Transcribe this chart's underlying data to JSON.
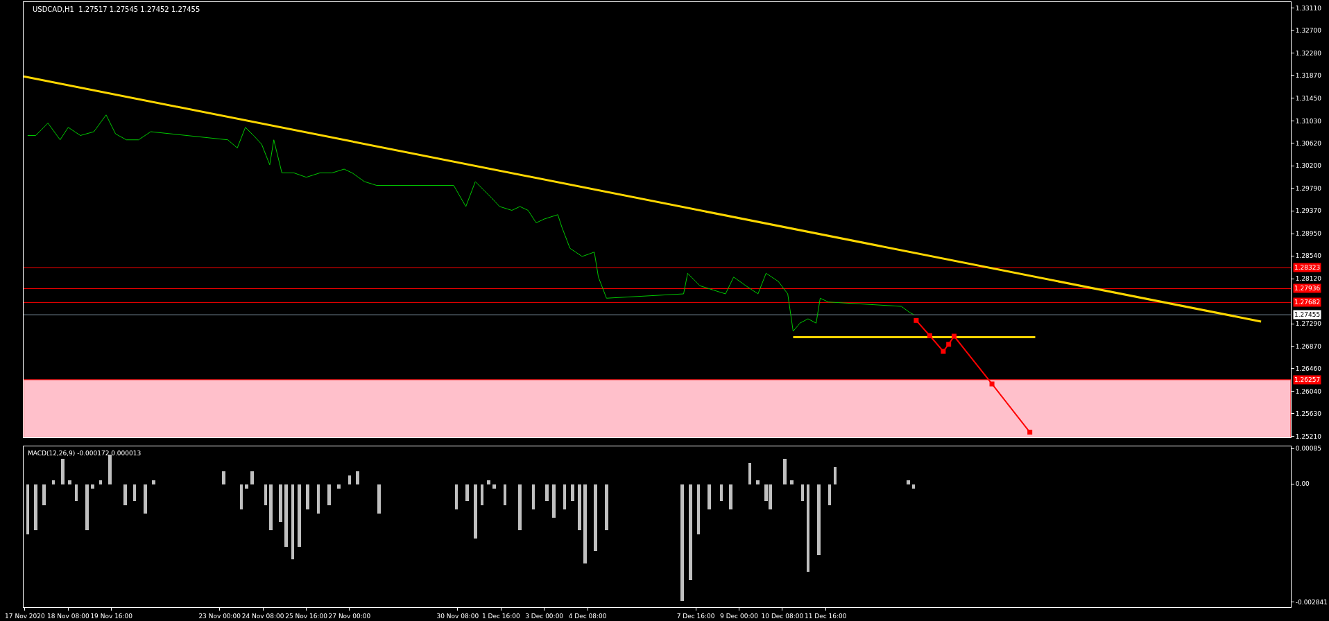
{
  "chart_data": [
    {
      "type": "line",
      "title": "USDCAD,H1  1.27517 1.27545 1.27452 1.27455",
      "xlim": [
        "2020-11-16T23:00",
        "2020-12-26T00:00"
      ],
      "ylim": [
        1.2519,
        1.3322
      ],
      "tick_labels": "y",
      "grid": false,
      "yticks": [
        {
          "value": 1.3311,
          "label": "1.33110"
        },
        {
          "value": 1.327,
          "label": "1.32700"
        },
        {
          "value": 1.3228,
          "label": "1.32280"
        },
        {
          "value": 1.3187,
          "label": "1.31870"
        },
        {
          "value": 1.3145,
          "label": "1.31450"
        },
        {
          "value": 1.3103,
          "label": "1.31030"
        },
        {
          "value": 1.3062,
          "label": "1.30620"
        },
        {
          "value": 1.302,
          "label": "1.30200"
        },
        {
          "value": 1.2979,
          "label": "1.29790"
        },
        {
          "value": 1.2937,
          "label": "1.29370"
        },
        {
          "value": 1.2895,
          "label": "1.28950"
        },
        {
          "value": 1.2854,
          "label": "1.28540"
        },
        {
          "value": 1.2812,
          "label": "1.28120"
        },
        {
          "value": 1.2729,
          "label": "1.27290"
        },
        {
          "value": 1.2687,
          "label": "1.26870"
        },
        {
          "value": 1.2646,
          "label": "1.26460"
        },
        {
          "value": 1.2604,
          "label": "1.26040"
        },
        {
          "value": 1.2563,
          "label": "1.25630"
        },
        {
          "value": 1.2521,
          "label": "1.25210"
        }
      ],
      "series": [
        {
          "color": "#00c800",
          "marker": "none",
          "line_style": "solid",
          "x": [
            "2020-11-17T02:00",
            "2020-11-17T08:00",
            "2020-11-17T17:00",
            "2020-11-18T02:00",
            "2020-11-18T08:00",
            "2020-11-18T17:00",
            "2020-11-19T03:00",
            "2020-11-19T12:00",
            "2020-11-19T19:00",
            "2020-11-20T03:00",
            "2020-11-20T12:00",
            "2020-11-20T21:00",
            "2020-11-23T06:00",
            "2020-11-23T13:00",
            "2020-11-23T19:00",
            "2020-11-24T01:00",
            "2020-11-24T07:00",
            "2020-11-24T13:00",
            "2020-11-24T16:00",
            "2020-11-24T22:00",
            "2020-11-25T07:00",
            "2020-11-25T16:00",
            "2020-11-26T02:00",
            "2020-11-26T11:00",
            "2020-11-26T20:00",
            "2020-11-27T02:00",
            "2020-11-27T11:00",
            "2020-11-27T20:00",
            "2020-11-30T05:00",
            "2020-11-30T14:00",
            "2020-11-30T21:00",
            "2020-12-01T03:00",
            "2020-12-01T09:00",
            "2020-12-01T15:00",
            "2020-12-02T00:00",
            "2020-12-02T06:00",
            "2020-12-02T12:00",
            "2020-12-02T18:00",
            "2020-12-03T00:00",
            "2020-12-03T10:00",
            "2020-12-03T13:00",
            "2020-12-03T19:00",
            "2020-12-04T04:00",
            "2020-12-04T13:00",
            "2020-12-04T16:00",
            "2020-12-04T22:00",
            "2020-12-07T07:00",
            "2020-12-07T10:00",
            "2020-12-07T19:00",
            "2020-12-08T05:00",
            "2020-12-08T14:00",
            "2020-12-08T20:00",
            "2020-12-09T05:00",
            "2020-12-09T14:00",
            "2020-12-09T20:00",
            "2020-12-10T05:00",
            "2020-12-10T12:00",
            "2020-12-10T16:00",
            "2020-12-10T21:00",
            "2020-12-11T03:00",
            "2020-12-11T09:00",
            "2020-12-11T12:00",
            "2020-12-11T18:00",
            "2020-12-14T00:00",
            "2020-12-14T06:00",
            "2020-12-14T09:00"
          ],
          "values": [
            1.3076,
            1.3076,
            1.3099,
            1.3068,
            1.3091,
            1.3076,
            1.3083,
            1.3114,
            1.3079,
            1.3068,
            1.3068,
            1.3083,
            1.3068,
            1.3053,
            1.3091,
            1.3076,
            1.306,
            1.3022,
            1.3068,
            1.3007,
            1.3007,
            1.2999,
            1.3007,
            1.3007,
            1.3014,
            1.3007,
            1.2991,
            1.2984,
            1.2984,
            1.2945,
            1.2991,
            1.2976,
            1.2961,
            1.2945,
            1.2938,
            1.2945,
            1.2938,
            1.2915,
            1.2922,
            1.293,
            1.2907,
            1.2868,
            1.2853,
            1.2861,
            1.2815,
            1.2776,
            1.2784,
            1.2822,
            1.2799,
            1.2791,
            1.2784,
            1.2815,
            1.2799,
            1.2784,
            1.2822,
            1.2807,
            1.2784,
            1.2715,
            1.273,
            1.2738,
            1.273,
            1.2776,
            1.2769,
            1.2761,
            1.275,
            1.2746
          ]
        },
        {
          "color": "#ffd700",
          "marker": "none",
          "line_style": "solid",
          "x": [
            "2020-11-16T23:00",
            "2020-12-25T02:00"
          ],
          "values": [
            1.3185,
            1.2733
          ]
        },
        {
          "color": "#ffd700",
          "marker": "none",
          "line_style": "solid",
          "x": [
            "2020-12-10T16:00",
            "2020-12-18T03:00"
          ],
          "values": [
            1.2704,
            1.2704
          ]
        },
        {
          "color": "#ff0000",
          "marker": "square",
          "line_style": "solid",
          "x": [
            "2020-12-14T11:00",
            "2020-12-14T21:00",
            "2020-12-15T07:00",
            "2020-12-15T11:00",
            "2020-12-15T15:00",
            "2020-12-16T19:00",
            "2020-12-17T23:00"
          ],
          "values": [
            1.2735,
            1.2707,
            1.2678,
            1.2691,
            1.2706,
            1.2618,
            1.2529
          ]
        }
      ],
      "ref_lines": [
        {
          "axis": "y",
          "value": 1.28323,
          "label": "1.28323",
          "color": "#ff0000"
        },
        {
          "axis": "y",
          "value": 1.27936,
          "label": "1.27936",
          "color": "#ff0000"
        },
        {
          "axis": "y",
          "value": 1.27682,
          "label": "1.27682",
          "color": "#ff0000"
        },
        {
          "axis": "y",
          "value": 1.27455,
          "label": "1.27455",
          "color": "#778899"
        }
      ],
      "bands": [
        {
          "axis": "y",
          "from": 1.2519,
          "to": 1.26257,
          "label": "1.26257",
          "color": "#ffc0cb"
        }
      ]
    },
    {
      "type": "bar",
      "annotations": [
        "MACD(12,26,9) -0.000172 0.000013"
      ],
      "xlim": [
        "2020-11-16T23:00",
        "2020-12-26T00:00"
      ],
      "ylim": [
        -0.00296,
        0.000907
      ],
      "grid": false,
      "yticks": [
        {
          "value": 0.00085,
          "label": "0.00085"
        },
        {
          "value": 0,
          "label": "0.00"
        },
        {
          "value": -0.002841,
          "label": "-0.002841"
        }
      ],
      "xticks": [
        {
          "value": "2020-11-17T00:00",
          "label": "17 Nov 2020"
        },
        {
          "value": "2020-11-18T08:00",
          "label": "18 Nov 08:00"
        },
        {
          "value": "2020-11-19T16:00",
          "label": "19 Nov 16:00"
        },
        {
          "value": "2020-11-23T00:00",
          "label": "23 Nov 00:00"
        },
        {
          "value": "2020-11-24T08:00",
          "label": "24 Nov 08:00"
        },
        {
          "value": "2020-11-25T16:00",
          "label": "25 Nov 16:00"
        },
        {
          "value": "2020-11-27T00:00",
          "label": "27 Nov 00:00"
        },
        {
          "value": "2020-11-30T08:00",
          "label": "30 Nov 08:00"
        },
        {
          "value": "2020-12-01T16:00",
          "label": "1 Dec 16:00"
        },
        {
          "value": "2020-12-03T00:00",
          "label": "3 Dec 00:00"
        },
        {
          "value": "2020-12-04T08:00",
          "label": "4 Dec 08:00"
        },
        {
          "value": "2020-12-07T16:00",
          "label": "7 Dec 16:00"
        },
        {
          "value": "2020-12-09T00:00",
          "label": "9 Dec 00:00"
        },
        {
          "value": "2020-12-10T08:00",
          "label": "10 Dec 08:00"
        },
        {
          "value": "2020-12-11T16:00",
          "label": "11 Dec 16:00"
        }
      ],
      "series": [
        {
          "color": "#c0c0c0",
          "x": [
            "2020-11-17T02:00",
            "2020-11-17T08:00",
            "2020-11-17T14:00",
            "2020-11-17T21:00",
            "2020-11-18T04:00",
            "2020-11-18T09:00",
            "2020-11-18T14:00",
            "2020-11-18T22:00",
            "2020-11-19T02:00",
            "2020-11-19T08:00",
            "2020-11-19T15:00",
            "2020-11-19T20:00",
            "2020-11-20T02:00",
            "2020-11-20T09:00",
            "2020-11-20T17:00",
            "2020-11-20T23:00",
            "2020-11-23T03:00",
            "2020-11-23T10:00",
            "2020-11-23T16:00",
            "2020-11-23T20:00",
            "2020-11-24T00:00",
            "2020-11-24T05:00",
            "2020-11-24T10:00",
            "2020-11-24T14:00",
            "2020-11-24T21:00",
            "2020-11-25T01:00",
            "2020-11-25T06:00",
            "2020-11-25T11:00",
            "2020-11-25T17:00",
            "2020-11-26T01:00",
            "2020-11-26T09:00",
            "2020-11-26T16:00",
            "2020-11-27T00:00",
            "2020-11-27T06:00",
            "2020-11-27T13:00",
            "2020-11-27T22:00",
            "2020-11-30T07:00",
            "2020-11-30T15:00",
            "2020-11-30T21:00",
            "2020-12-01T02:00",
            "2020-12-01T07:00",
            "2020-12-01T11:00",
            "2020-12-01T19:00",
            "2020-12-02T06:00",
            "2020-12-02T16:00",
            "2020-12-03T02:00",
            "2020-12-03T07:00",
            "2020-12-03T15:00",
            "2020-12-03T21:00",
            "2020-12-04T02:00",
            "2020-12-04T06:00",
            "2020-12-04T14:00",
            "2020-12-04T22:00",
            "2020-12-07T06:00",
            "2020-12-07T12:00",
            "2020-12-07T18:00",
            "2020-12-08T02:00",
            "2020-12-08T11:00",
            "2020-12-08T18:00",
            "2020-12-09T02:00",
            "2020-12-09T08:00",
            "2020-12-09T14:00",
            "2020-12-09T20:00",
            "2020-12-09T23:00",
            "2020-12-10T04:00",
            "2020-12-10T10:00",
            "2020-12-10T15:00",
            "2020-12-10T23:00",
            "2020-12-11T03:00",
            "2020-12-11T11:00",
            "2020-12-11T19:00",
            "2020-12-11T23:00",
            "2020-12-14T05:00",
            "2020-12-14T09:00"
          ],
          "values": [
            -0.0012,
            -0.0011,
            -0.0005,
            0.0001,
            0.0006,
            0.0001,
            -0.0004,
            -0.0011,
            -0.0001,
            0.0001,
            0.0007,
            0.0,
            -0.0005,
            -0.0004,
            -0.0007,
            0.0001,
            0.0003,
            0.0,
            -0.0006,
            -0.0001,
            0.0003,
            0.0,
            -0.0005,
            -0.0011,
            -0.0009,
            -0.0015,
            -0.0018,
            -0.0015,
            -0.0006,
            -0.0007,
            -0.0005,
            -0.0001,
            0.0002,
            0.0003,
            0.0,
            -0.0007,
            -0.0006,
            -0.0004,
            -0.0013,
            -0.0005,
            0.0001,
            -0.0001,
            -0.0005,
            -0.0011,
            -0.0006,
            -0.0004,
            -0.0008,
            -0.0006,
            -0.0004,
            -0.0011,
            -0.0019,
            -0.0016,
            -0.0011,
            -0.0028,
            -0.0023,
            -0.0012,
            -0.0006,
            -0.0004,
            -0.0006,
            0.0,
            0.0005,
            0.0001,
            -0.0004,
            -0.0006,
            0.0,
            0.0006,
            0.0001,
            -0.0004,
            -0.0021,
            -0.0017,
            -0.0005,
            0.0004,
            0.0001,
            -0.0001
          ]
        }
      ]
    }
  ]
}
